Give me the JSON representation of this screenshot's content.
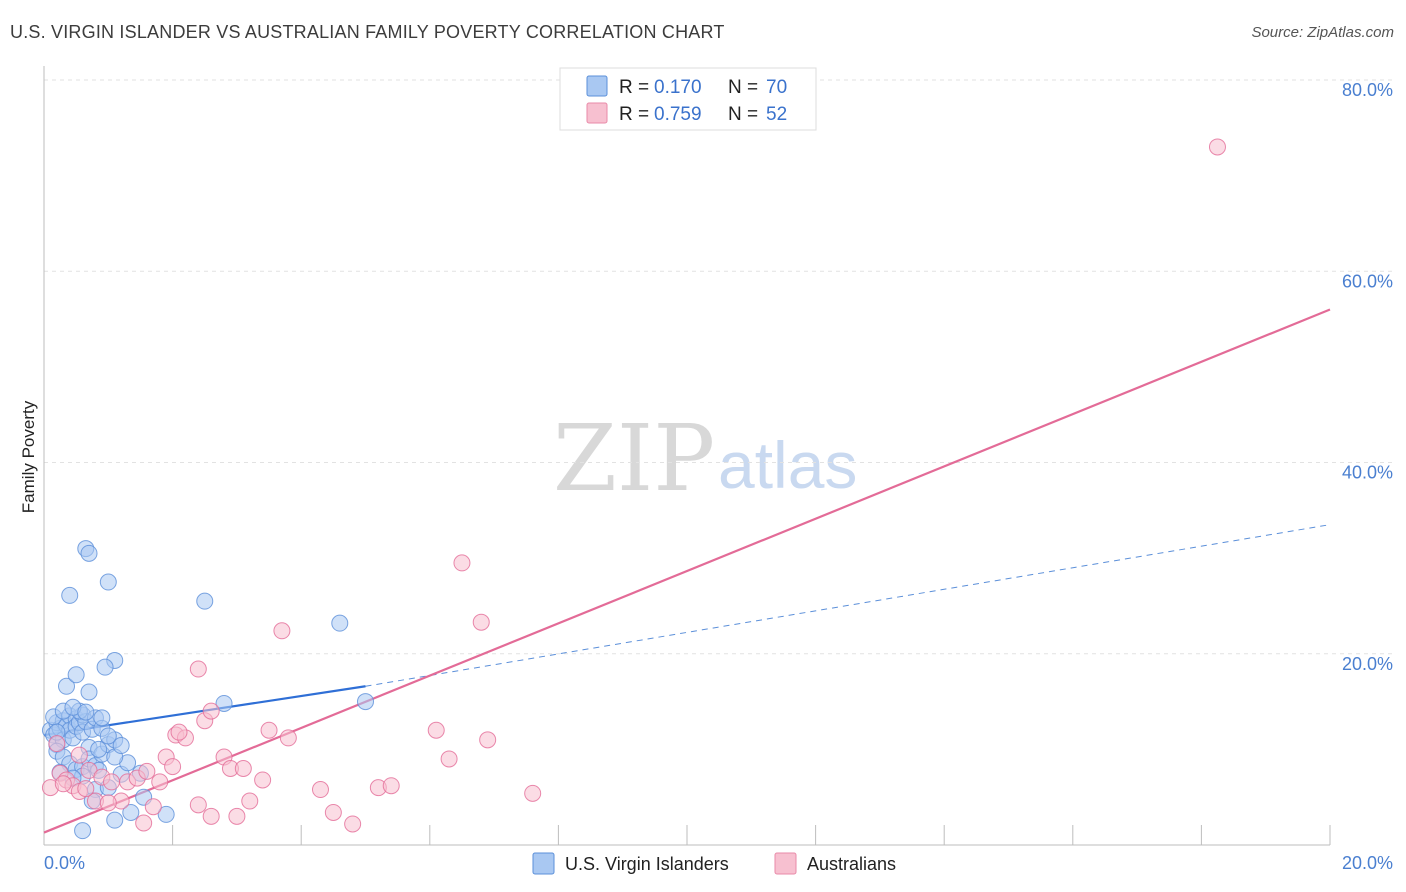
{
  "header": {
    "title": "U.S. VIRGIN ISLANDER VS AUSTRALIAN FAMILY POVERTY CORRELATION CHART",
    "source": "Source: ZipAtlas.com"
  },
  "watermark": {
    "part1": "ZIP",
    "part2": "atlas"
  },
  "legend": {
    "r_label": "R =",
    "n_label": "N =",
    "rows": [
      {
        "r": "0.170",
        "n": "70",
        "color": "#a9c8f2",
        "stroke": "#5b8fd9"
      },
      {
        "r": "0.759",
        "n": "52",
        "color": "#f7c0d0",
        "stroke": "#e88aa8"
      }
    ]
  },
  "bottom_legend": [
    {
      "label": "U.S. Virgin Islanders",
      "color": "#a9c8f2",
      "stroke": "#5b8fd9"
    },
    {
      "label": "Australians",
      "color": "#f7c0d0",
      "stroke": "#e88aa8"
    }
  ],
  "chart_data": {
    "type": "scatter",
    "title": "U.S. VIRGIN ISLANDER VS AUSTRALIAN FAMILY POVERTY CORRELATION CHART",
    "xlabel": "",
    "ylabel": "Family Poverty",
    "xlim": [
      0,
      20
    ],
    "ylim": [
      0,
      80
    ],
    "x_tick_labels": [
      "0.0%",
      "20.0%"
    ],
    "y_tick_values": [
      20,
      40,
      60,
      80
    ],
    "y_tick_labels": [
      "20.0%",
      "40.0%",
      "60.0%",
      "80.0%"
    ],
    "grid": true,
    "series": [
      {
        "name": "U.S. Virgin Islanders",
        "color": "#5b8fd9",
        "fill": "#a9c8f2",
        "R": 0.17,
        "N": 70,
        "trend": {
          "x0": 0,
          "y0": 11.5,
          "x1": 5.0,
          "y1": 16.6,
          "dash_to_x": 20,
          "dash_to_y": 33.5
        },
        "points": [
          [
            0.1,
            12.0
          ],
          [
            0.15,
            11.5
          ],
          [
            0.2,
            12.8
          ],
          [
            0.2,
            10.5
          ],
          [
            0.25,
            12.2
          ],
          [
            0.3,
            11.0
          ],
          [
            0.3,
            13.0
          ],
          [
            0.35,
            12.5
          ],
          [
            0.4,
            13.5
          ],
          [
            0.4,
            12.0
          ],
          [
            0.45,
            11.2
          ],
          [
            0.5,
            13.2
          ],
          [
            0.5,
            12.4
          ],
          [
            0.55,
            12.8
          ],
          [
            0.6,
            11.8
          ],
          [
            0.6,
            13.6
          ],
          [
            0.65,
            12.9
          ],
          [
            0.7,
            10.2
          ],
          [
            0.75,
            12.1
          ],
          [
            0.8,
            13.3
          ],
          [
            0.2,
            9.8
          ],
          [
            0.3,
            9.2
          ],
          [
            0.4,
            8.5
          ],
          [
            0.5,
            7.9
          ],
          [
            0.6,
            8.2
          ],
          [
            0.7,
            9.0
          ],
          [
            0.8,
            8.3
          ],
          [
            0.9,
            9.5
          ],
          [
            1.0,
            10.5
          ],
          [
            1.1,
            11.0
          ],
          [
            0.9,
            12.2
          ],
          [
            1.0,
            11.4
          ],
          [
            0.35,
            16.6
          ],
          [
            0.5,
            17.8
          ],
          [
            0.7,
            16.0
          ],
          [
            0.9,
            13.3
          ],
          [
            1.1,
            19.3
          ],
          [
            0.95,
            18.6
          ],
          [
            0.55,
            14.0
          ],
          [
            0.85,
            7.8
          ],
          [
            0.6,
            7.2
          ],
          [
            0.8,
            5.8
          ],
          [
            1.0,
            6.0
          ],
          [
            1.2,
            7.4
          ],
          [
            0.45,
            7.0
          ],
          [
            0.25,
            7.6
          ],
          [
            0.75,
            4.6
          ],
          [
            1.1,
            2.6
          ],
          [
            1.35,
            3.4
          ],
          [
            1.55,
            5.0
          ],
          [
            1.9,
            3.2
          ],
          [
            0.6,
            1.5
          ],
          [
            0.4,
            26.1
          ],
          [
            0.65,
            31.0
          ],
          [
            0.7,
            30.5
          ],
          [
            1.0,
            27.5
          ],
          [
            2.5,
            25.5
          ],
          [
            2.8,
            14.8
          ],
          [
            4.6,
            23.2
          ],
          [
            5.0,
            15.0
          ],
          [
            1.3,
            8.6
          ],
          [
            1.1,
            9.2
          ],
          [
            1.5,
            7.5
          ],
          [
            0.15,
            13.4
          ],
          [
            0.3,
            14.0
          ],
          [
            0.45,
            14.4
          ],
          [
            0.2,
            11.8
          ],
          [
            0.65,
            13.9
          ],
          [
            1.2,
            10.4
          ],
          [
            0.85,
            10.0
          ]
        ]
      },
      {
        "name": "Australians",
        "color": "#e36b97",
        "fill": "#f7c0d0",
        "R": 0.759,
        "N": 52,
        "trend": {
          "x0": 0,
          "y0": 1.3,
          "x1": 20,
          "y1": 56.0
        },
        "points": [
          [
            0.1,
            6.0
          ],
          [
            0.25,
            7.5
          ],
          [
            0.35,
            6.8
          ],
          [
            0.45,
            6.2
          ],
          [
            0.55,
            5.6
          ],
          [
            0.7,
            7.8
          ],
          [
            0.8,
            4.6
          ],
          [
            0.9,
            7.1
          ],
          [
            1.05,
            6.6
          ],
          [
            1.2,
            4.6
          ],
          [
            1.3,
            6.6
          ],
          [
            1.45,
            7.0
          ],
          [
            1.55,
            2.3
          ],
          [
            1.7,
            4.0
          ],
          [
            1.8,
            6.6
          ],
          [
            1.9,
            9.2
          ],
          [
            2.0,
            8.2
          ],
          [
            2.05,
            11.5
          ],
          [
            2.2,
            11.2
          ],
          [
            2.4,
            4.2
          ],
          [
            2.5,
            13.0
          ],
          [
            2.6,
            3.0
          ],
          [
            2.8,
            9.2
          ],
          [
            2.9,
            8.0
          ],
          [
            3.0,
            3.0
          ],
          [
            3.1,
            8.0
          ],
          [
            3.2,
            4.6
          ],
          [
            3.4,
            6.8
          ],
          [
            3.5,
            12.0
          ],
          [
            3.8,
            11.2
          ],
          [
            4.3,
            5.8
          ],
          [
            4.5,
            3.4
          ],
          [
            4.8,
            2.2
          ],
          [
            5.2,
            6.0
          ],
          [
            5.4,
            6.2
          ],
          [
            6.1,
            12.0
          ],
          [
            6.3,
            9.0
          ],
          [
            6.5,
            29.5
          ],
          [
            6.8,
            23.3
          ],
          [
            6.9,
            11.0
          ],
          [
            7.6,
            5.4
          ],
          [
            2.4,
            18.4
          ],
          [
            2.6,
            14.0
          ],
          [
            3.7,
            22.4
          ],
          [
            0.55,
            9.4
          ],
          [
            0.2,
            10.6
          ],
          [
            1.0,
            4.4
          ],
          [
            1.6,
            7.7
          ],
          [
            0.3,
            6.4
          ],
          [
            0.65,
            5.9
          ],
          [
            2.1,
            11.8
          ],
          [
            18.25,
            73.0
          ]
        ]
      }
    ]
  }
}
